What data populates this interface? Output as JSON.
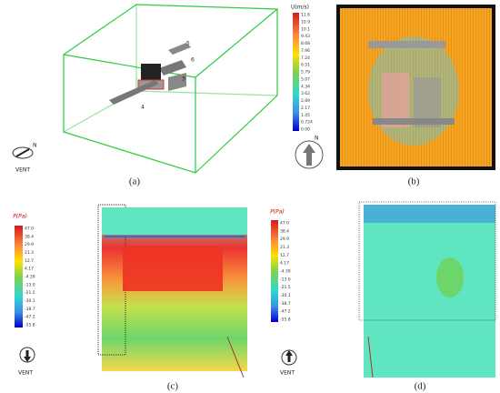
{
  "panel_labels": [
    "(a)",
    "(b)",
    "(c)",
    "(d)"
  ],
  "panel_a": {
    "markers": [
      "5",
      "6",
      "3",
      "4"
    ],
    "compass": "N",
    "vent": "VENT"
  },
  "colorbar_u": {
    "title": "U(m/s)",
    "ticks": [
      "11.6",
      "10.9",
      "10.1",
      "9.43",
      "8.68",
      "7.96",
      "7.24",
      "6.51",
      "5.79",
      "5.07",
      "4.34",
      "3.62",
      "2.89",
      "2.17",
      "1.45",
      "0.724",
      "0.00"
    ],
    "arrow_label": "N"
  },
  "colorbar_p_c": {
    "title": "P(Pa)",
    "ticks": [
      "47.0",
      "38.4",
      "29.9",
      "21.3",
      "12.7",
      "4.17",
      "-4.39",
      "-13.0",
      "-21.5",
      "-30.1",
      "-38.7",
      "-47.2",
      "-55.8"
    ],
    "vent": "VENT"
  },
  "colorbar_p_d": {
    "title": "P(Pa)",
    "ticks": [
      "47.0",
      "38.4",
      "29.9",
      "21.3",
      "12.7",
      "4.17",
      "-4.39",
      "-13.0",
      "-21.5",
      "-30.1",
      "-38.7",
      "-47.2",
      "-55.8"
    ],
    "vent": "VENT"
  }
}
